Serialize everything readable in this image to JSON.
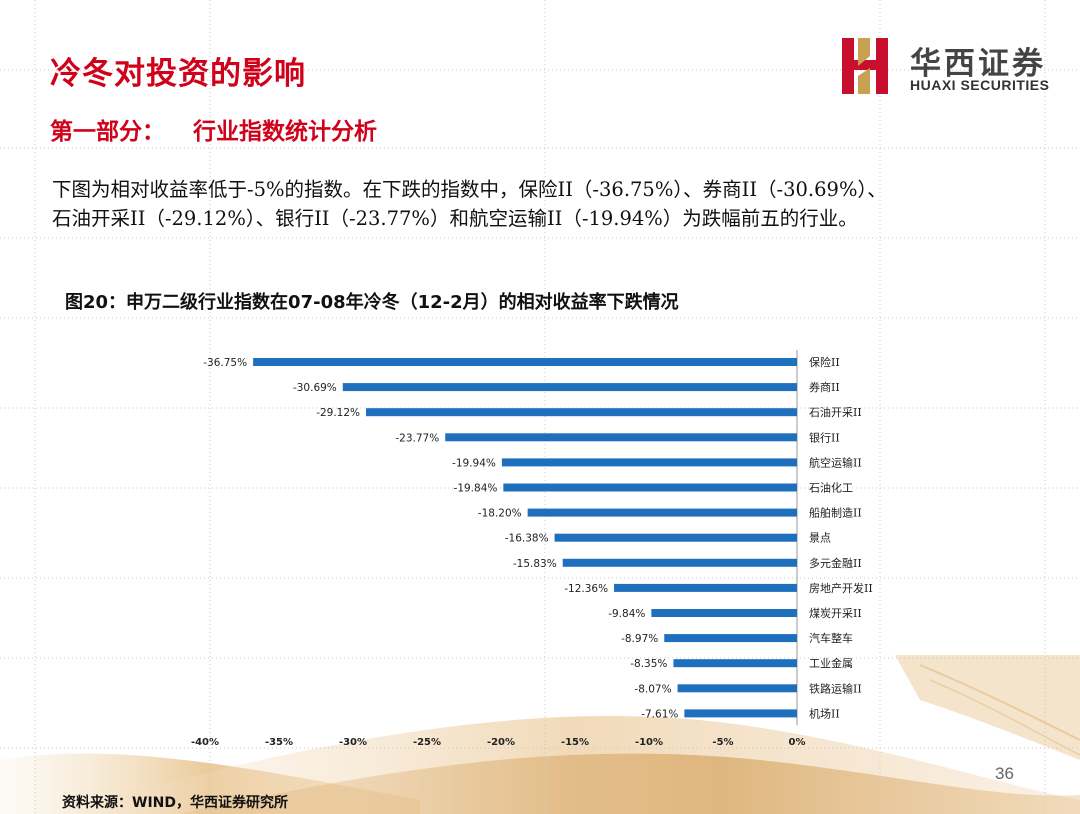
{
  "header": {
    "title": "冷冬对投资的影响",
    "subtitle_part1": "第一部分：",
    "subtitle_part2": "行业指数统计分析"
  },
  "logo": {
    "name_cn": "华西证券",
    "name_en": "HUAXI SECURITIES"
  },
  "body": {
    "line1": "下图为相对收益率低于-5%的指数。在下跌的指数中，保险II（-36.75%）、券商II（-30.69%）、",
    "line2": "石油开采II（-29.12%）、银行II（-23.77%）和航空运输II（-19.94%）为跌幅前五的行业。"
  },
  "chart_title": "图20：申万二级行业指数在07-08年冷冬（12-2月）的相对收益率下跌情况",
  "chart_data": {
    "type": "bar",
    "orientation": "horizontal",
    "categories": [
      "保险II",
      "券商II",
      "石油开采II",
      "银行II",
      "航空运输II",
      "石油化工",
      "船舶制造II",
      "景点",
      "多元金融II",
      "房地产开发II",
      "煤炭开采II",
      "汽车整车",
      "工业金属",
      "铁路运输II",
      "机场II"
    ],
    "values": [
      -36.75,
      -30.69,
      -29.12,
      -23.77,
      -19.94,
      -19.84,
      -18.2,
      -16.38,
      -15.83,
      -12.36,
      -9.84,
      -8.97,
      -8.35,
      -8.07,
      -7.61
    ],
    "data_labels": [
      "-36.75%",
      "-30.69%",
      "-29.12%",
      "-23.77%",
      "-19.94%",
      "-19.84%",
      "-18.20%",
      "-16.38%",
      "-15.83%",
      "-12.36%",
      "-9.84%",
      "-8.97%",
      "-8.35%",
      "-8.07%",
      "-7.61%"
    ],
    "x_ticks": [
      "-40%",
      "-35%",
      "-30%",
      "-25%",
      "-20%",
      "-15%",
      "-10%",
      "-5%",
      "0%"
    ],
    "xlim": [
      -40,
      0
    ],
    "bar_color": "#1f6fbf"
  },
  "footer": {
    "source": "资料来源：WIND，华西证券研究所",
    "page": "36"
  },
  "colors": {
    "accent": "#d0021b",
    "logo_red": "#c8102e",
    "logo_gold": "#c8a052"
  }
}
